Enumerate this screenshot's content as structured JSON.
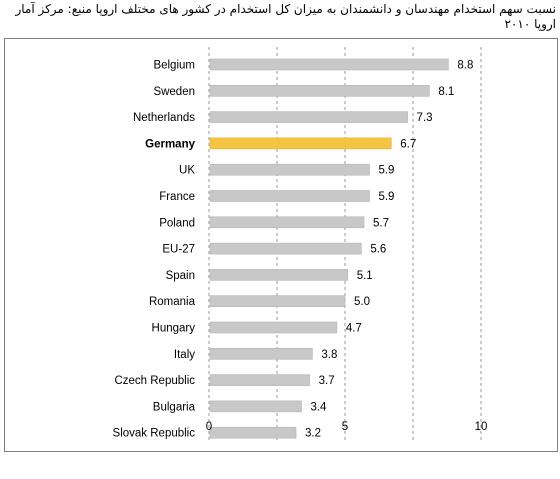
{
  "title": "نسبت سهم استخدام مهندسان و دانشمندان به میزان کل استخدام در کشور های مختلف اروپا منبع: مرکز آمار اروپا ۲۰۱۰",
  "chart_data": {
    "type": "bar",
    "orientation": "horizontal",
    "title": "نسبت سهم استخدام مهندسان و دانشمندان به میزان کل استخدام در کشور های مختلف اروپا منبع: مرکز آمار اروپا ۲۰۱۰",
    "categories": [
      "Belgium",
      "Sweden",
      "Netherlands",
      "Germany",
      "UK",
      "France",
      "Poland",
      "EU-27",
      "Spain",
      "Romania",
      "Hungary",
      "Italy",
      "Czech Republic",
      "Bulgaria",
      "Slovak Republic"
    ],
    "values": [
      8.8,
      8.1,
      7.3,
      6.7,
      5.9,
      5.9,
      5.7,
      5.6,
      5.1,
      5.0,
      4.7,
      3.8,
      3.7,
      3.4,
      3.2
    ],
    "value_labels": [
      "8.8",
      "8.1",
      "7.3",
      "6.7",
      "5.9",
      "5.9",
      "5.7",
      "5.6",
      "5.1",
      "5.0",
      "4.7",
      "3.8",
      "3.7",
      "3.4",
      "3.2"
    ],
    "highlight": "Germany",
    "xlim": [
      0,
      10
    ],
    "xticks": [
      "0",
      "5",
      "10"
    ],
    "grid": "vertical dashed",
    "colors": {
      "bar": "#c8c8c8",
      "highlight": "#f5c542"
    }
  }
}
